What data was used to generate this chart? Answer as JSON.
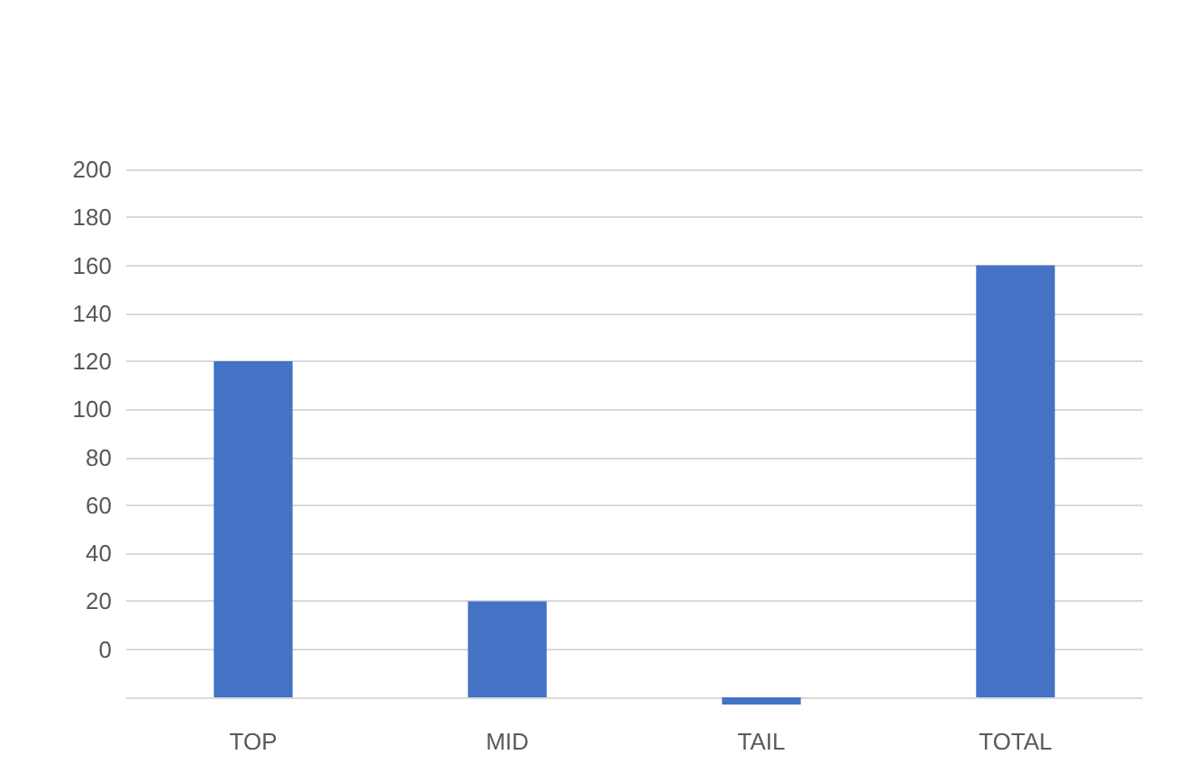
{
  "chart_data": {
    "type": "bar",
    "categories": [
      "TOP",
      "MID",
      "TAIL",
      "TOTAL"
    ],
    "base": [
      -20,
      -20,
      -20,
      -20
    ],
    "values": [
      140,
      40,
      -3,
      180
    ],
    "color": "#4472c4",
    "ylim": [
      -23,
      200
    ],
    "yticks": [
      {
        "value": -20,
        "label": null
      },
      0,
      20,
      40,
      60,
      80,
      100,
      120,
      140,
      160,
      180,
      200
    ],
    "grid": "y"
  }
}
